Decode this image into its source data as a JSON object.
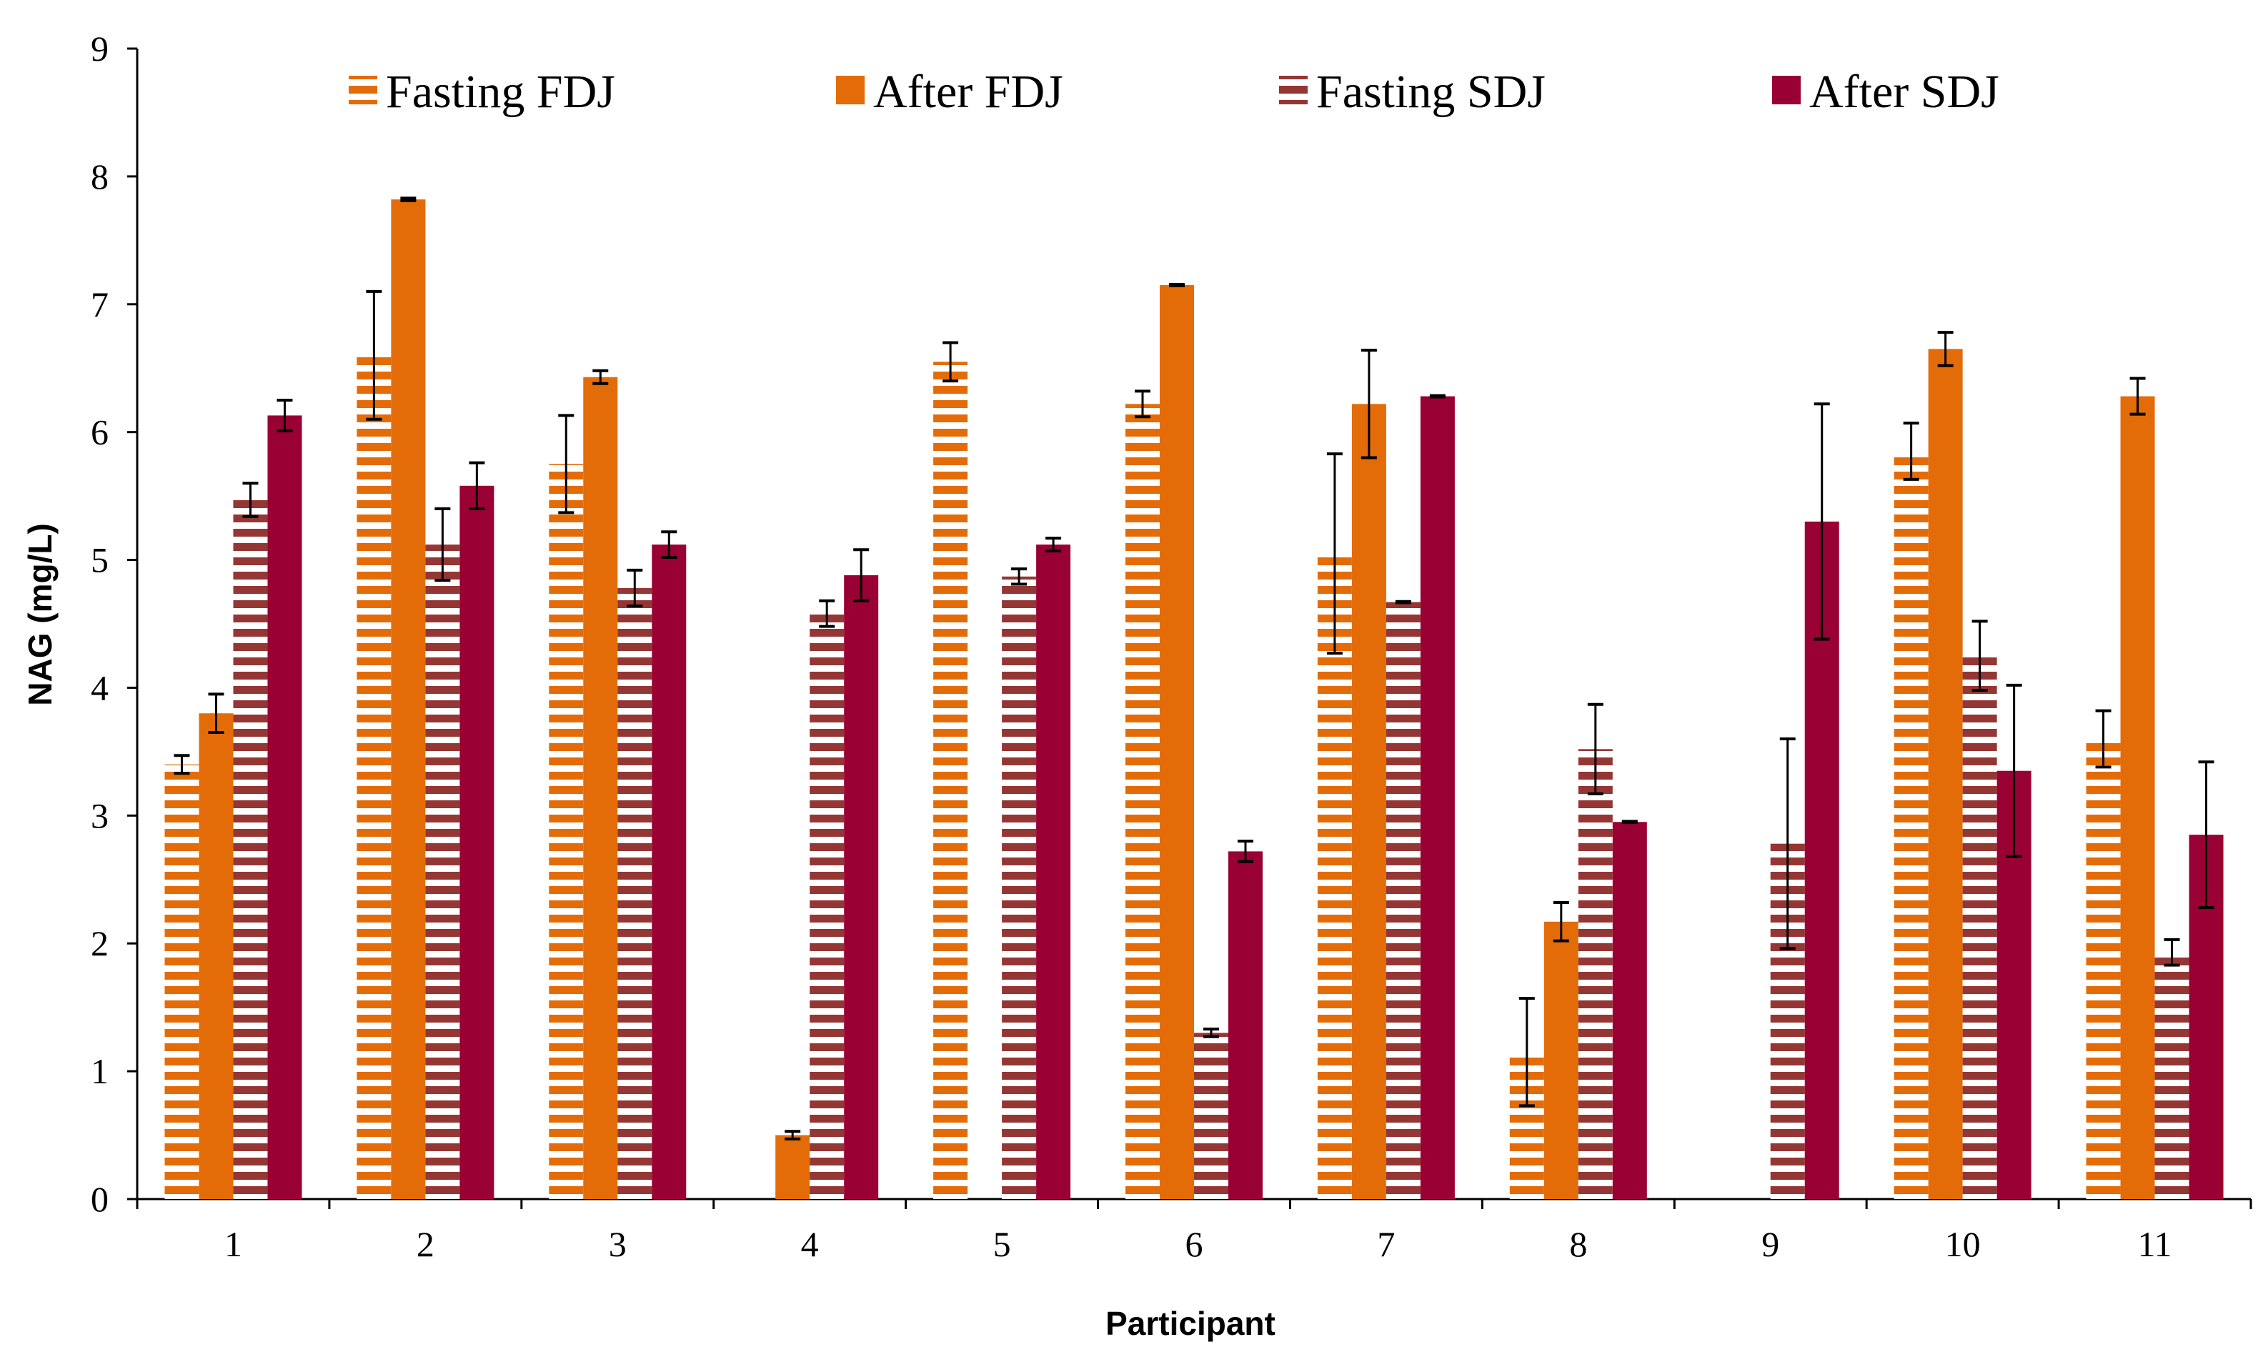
{
  "chart_data": {
    "type": "bar",
    "title": "",
    "xlabel": "Participant",
    "ylabel": "NAG (mg/L)",
    "ylim": [
      0,
      9
    ],
    "yticks": [
      "0",
      "1",
      "2",
      "3",
      "4",
      "5",
      "6",
      "7",
      "8",
      "9"
    ],
    "categories": [
      "1",
      "2",
      "3",
      "4",
      "5",
      "6",
      "7",
      "8",
      "9",
      "10",
      "11"
    ],
    "legend_position": "top",
    "grid": false,
    "series": [
      {
        "name": "Fasting FDJ",
        "color": "#E36C09",
        "pattern": "horizontal-stripes",
        "values": [
          3.4,
          6.6,
          5.75,
          0,
          6.55,
          6.22,
          5.05,
          1.15,
          0,
          5.85,
          3.6
        ],
        "errors": [
          0.07,
          0.5,
          0.38,
          0,
          0.15,
          0.1,
          0.78,
          0.42,
          0,
          0.22,
          0.22
        ]
      },
      {
        "name": "After FDJ",
        "color": "#E36C09",
        "pattern": "solid",
        "values": [
          3.8,
          7.82,
          6.43,
          0.5,
          0,
          7.15,
          6.22,
          2.17,
          0,
          6.65,
          6.28
        ],
        "errors": [
          0.15,
          0.01,
          0.05,
          0.03,
          0,
          0.005,
          0.42,
          0.15,
          0,
          0.13,
          0.14
        ]
      },
      {
        "name": "Fasting SDJ",
        "color": "#943634",
        "pattern": "horizontal-stripes",
        "values": [
          5.47,
          5.12,
          4.78,
          4.58,
          4.87,
          1.3,
          4.67,
          3.52,
          2.78,
          4.25,
          1.93
        ],
        "errors": [
          0.13,
          0.28,
          0.14,
          0.1,
          0.06,
          0.03,
          0.005,
          0.35,
          0.82,
          0.27,
          0.1
        ]
      },
      {
        "name": "After SDJ",
        "color": "#990033",
        "pattern": "solid",
        "values": [
          6.13,
          5.58,
          5.12,
          4.88,
          5.12,
          2.72,
          6.28,
          2.95,
          5.3,
          3.35,
          2.85
        ],
        "errors": [
          0.12,
          0.18,
          0.1,
          0.2,
          0.05,
          0.08,
          0.005,
          0.005,
          0.92,
          0.67,
          0.57
        ]
      }
    ]
  }
}
